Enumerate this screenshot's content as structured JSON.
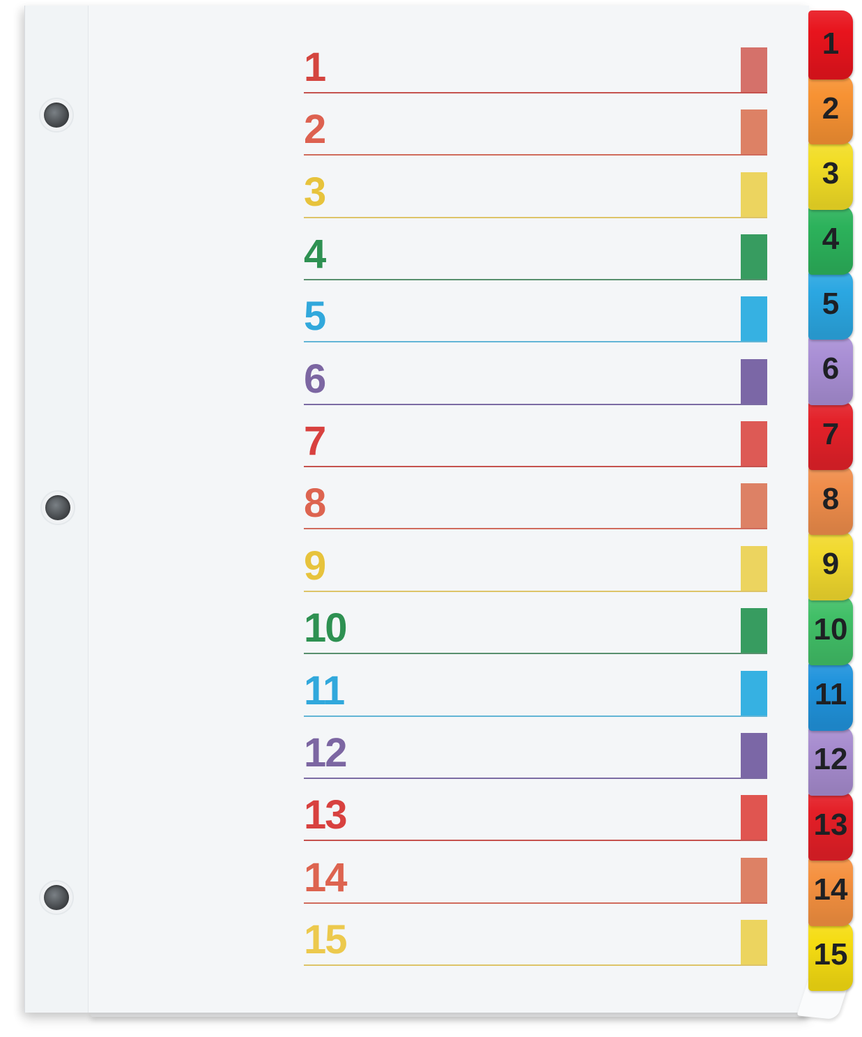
{
  "palette": {
    "background": "#ffffff",
    "page": "#f4f6f8",
    "binding_strip": "#f1f4f6",
    "tab_text": "#1f2125",
    "hole_dark": "#45484b"
  },
  "page_features": {
    "hole_count": 3
  },
  "rows": [
    {
      "label": "1",
      "number_color": "#d4453f",
      "line_color": "#c5524e",
      "swatch_color": "#d5716a"
    },
    {
      "label": "2",
      "number_color": "#dd6150",
      "line_color": "#d06b5c",
      "swatch_color": "#dd8165"
    },
    {
      "label": "3",
      "number_color": "#e7c33c",
      "line_color": "#ddc468",
      "swatch_color": "#ecd45f"
    },
    {
      "label": "4",
      "number_color": "#2e9152",
      "line_color": "#58906e",
      "swatch_color": "#379c60"
    },
    {
      "label": "5",
      "number_color": "#31a8dc",
      "line_color": "#62b5d6",
      "swatch_color": "#36b1e2"
    },
    {
      "label": "6",
      "number_color": "#7c66a2",
      "line_color": "#7b6ba3",
      "swatch_color": "#7b67a6"
    },
    {
      "label": "7",
      "number_color": "#d8413f",
      "line_color": "#c5524e",
      "swatch_color": "#dd5a55"
    },
    {
      "label": "8",
      "number_color": "#dd6450",
      "line_color": "#d06b5c",
      "swatch_color": "#dd8165"
    },
    {
      "label": "9",
      "number_color": "#e7c33c",
      "line_color": "#ddc468",
      "swatch_color": "#ecd45f"
    },
    {
      "label": "10",
      "number_color": "#2e9152",
      "line_color": "#58906e",
      "swatch_color": "#379c60"
    },
    {
      "label": "11",
      "number_color": "#31a8dc",
      "line_color": "#62b5d6",
      "swatch_color": "#36b1e2"
    },
    {
      "label": "12",
      "number_color": "#7c66a2",
      "line_color": "#7b6ba3",
      "swatch_color": "#7b67a6"
    },
    {
      "label": "13",
      "number_color": "#d8413f",
      "line_color": "#c5524e",
      "swatch_color": "#e05550"
    },
    {
      "label": "14",
      "number_color": "#dd6450",
      "line_color": "#d06b5c",
      "swatch_color": "#dd8165"
    },
    {
      "label": "15",
      "number_color": "#ecc94d",
      "line_color": "#ddc468",
      "swatch_color": "#ecd45f"
    }
  ],
  "tabs": [
    {
      "label": "1",
      "color": "#e8141d"
    },
    {
      "label": "2",
      "color": "#f79233"
    },
    {
      "label": "3",
      "color": "#f2dd26"
    },
    {
      "label": "4",
      "color": "#2cb25b"
    },
    {
      "label": "5",
      "color": "#2ba7e2"
    },
    {
      "label": "6",
      "color": "#a98fd5"
    },
    {
      "label": "7",
      "color": "#e32129"
    },
    {
      "label": "8",
      "color": "#ef8d4b"
    },
    {
      "label": "9",
      "color": "#f1d92e"
    },
    {
      "label": "10",
      "color": "#41bf67"
    },
    {
      "label": "11",
      "color": "#2093dc"
    },
    {
      "label": "12",
      "color": "#a78ccf"
    },
    {
      "label": "13",
      "color": "#e41f27"
    },
    {
      "label": "14",
      "color": "#f59140"
    },
    {
      "label": "15",
      "color": "#f5dc12"
    }
  ]
}
